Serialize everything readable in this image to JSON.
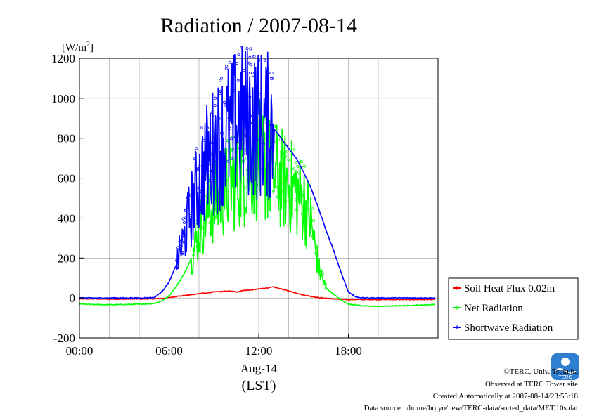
{
  "chart_data": {
    "type": "line",
    "title": "Radiation / 2007-08-14",
    "yunit": "[W/m",
    "yunit_sup": "2",
    "yunit_close": "]",
    "ylim": [
      -200,
      1200
    ],
    "yticks": [
      -200,
      0,
      200,
      400,
      600,
      800,
      1000,
      1200
    ],
    "xlim": [
      0,
      24
    ],
    "xticks": [
      {
        "value": 0,
        "label": "00:00"
      },
      {
        "value": 6,
        "label": "06:00"
      },
      {
        "value": 12,
        "label": "12:00"
      },
      {
        "value": 18,
        "label": "18:00"
      }
    ],
    "xlabel_date": "Aug-14",
    "xlabel": "(LST)",
    "grid": true,
    "legend_position": "right",
    "series": [
      {
        "name": "Soil Heat Flux 0.02m",
        "color": "#ff0000",
        "x": [
          0,
          1,
          2,
          3,
          4,
          5,
          5.5,
          6,
          6.5,
          7,
          7.5,
          8,
          8.5,
          9,
          9.5,
          10,
          10.5,
          11,
          11.5,
          12,
          12.5,
          13,
          13.5,
          14,
          14.5,
          15,
          15.5,
          16,
          17,
          18,
          19,
          20,
          21,
          22,
          23,
          23.8
        ],
        "y": [
          -5,
          -5,
          -6,
          -6,
          -5,
          -5,
          -3,
          2,
          8,
          12,
          16,
          22,
          25,
          30,
          32,
          35,
          30,
          38,
          40,
          45,
          50,
          55,
          45,
          35,
          25,
          15,
          8,
          2,
          -5,
          -8,
          -8,
          -8,
          -8,
          -8,
          -8,
          -8
        ]
      },
      {
        "name": "Net Radiation",
        "color": "#00ff00",
        "x": [
          0,
          1,
          2,
          3,
          4,
          5,
          5.5,
          6,
          6.5,
          7,
          7.5,
          8,
          8.5,
          9,
          9.5,
          10,
          10.5,
          11,
          11.5,
          12,
          12.5,
          13,
          13.5,
          14,
          14.5,
          15,
          15.5,
          16,
          16.5,
          17,
          17.5,
          18,
          19,
          20,
          21,
          22,
          23,
          23.8
        ],
        "y": [
          -30,
          -33,
          -34,
          -33,
          -31,
          -28,
          -15,
          10,
          60,
          120,
          200,
          330,
          430,
          470,
          520,
          560,
          600,
          620,
          680,
          690,
          650,
          620,
          600,
          570,
          530,
          480,
          380,
          150,
          50,
          20,
          -10,
          -30,
          -40,
          -42,
          -40,
          -38,
          -35,
          -33
        ],
        "noisy_region": [
          7.5,
          16.5
        ]
      },
      {
        "name": "Shortwave Radiation",
        "color": "#0000ff",
        "x": [
          0,
          1,
          2,
          3,
          4,
          5,
          5.5,
          6,
          6.5,
          7,
          7.5,
          8,
          8.5,
          9,
          9.5,
          10,
          10.5,
          11,
          11.5,
          12,
          12.5,
          13,
          13.5,
          14,
          14.5,
          15,
          15.5,
          16,
          16.5,
          17,
          17.5,
          18,
          18.5,
          19,
          20,
          21,
          22,
          23,
          23.8
        ],
        "y": [
          0,
          0,
          0,
          0,
          0,
          2,
          30,
          80,
          170,
          300,
          450,
          580,
          680,
          740,
          790,
          830,
          870,
          890,
          880,
          870,
          860,
          850,
          800,
          750,
          700,
          630,
          550,
          450,
          340,
          240,
          130,
          30,
          5,
          0,
          0,
          0,
          0,
          0,
          0
        ],
        "noisy_region": [
          6.5,
          13
        ]
      }
    ]
  },
  "logo_text": "TERC",
  "footer": {
    "line1": "©TERC, Univ. Tsukuba",
    "line2": "Observed at TERC Tower site",
    "line3": "Created Automatically at 2007-08-14/23:55:18",
    "line4": "Data source : /home/hojyo/new/TERC-data/sorted_data/MET.10s.dat"
  }
}
